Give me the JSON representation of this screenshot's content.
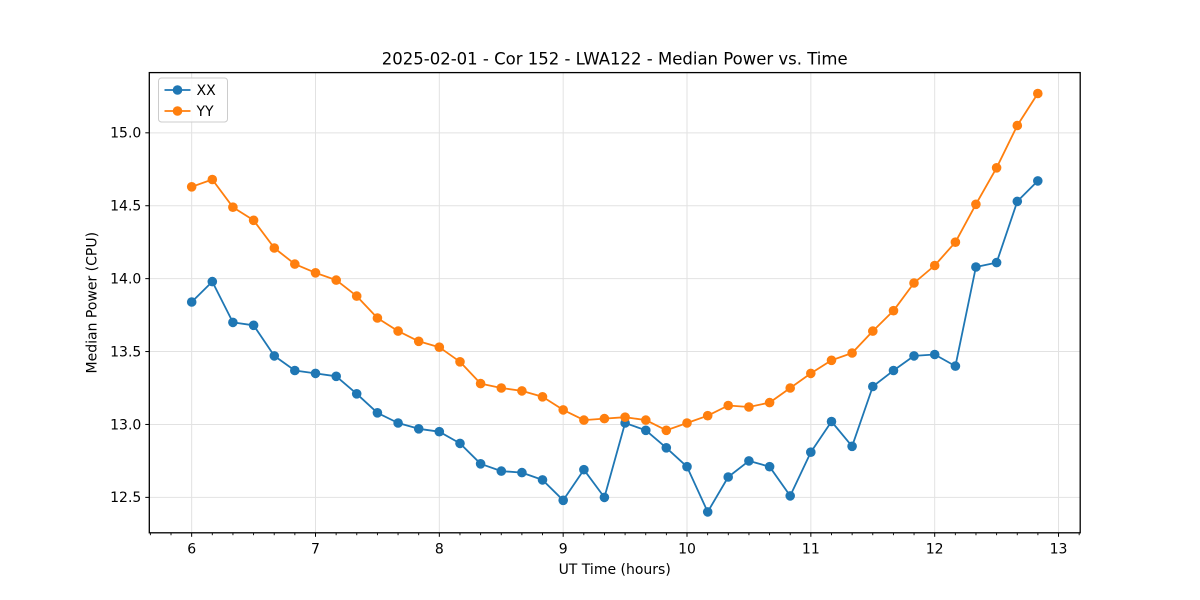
{
  "chart_data": {
    "type": "line",
    "title": "2025-02-01 - Cor 152 - LWA122 - Median Power vs. Time",
    "xlabel": "UT Time (hours)",
    "ylabel": "Median Power (CPU)",
    "xlim": [
      5.658,
      13.175
    ],
    "ylim": [
      12.257,
      15.413
    ],
    "x_ticks": [
      6,
      7,
      8,
      9,
      10,
      11,
      12,
      13
    ],
    "x_tick_labels": [
      "6",
      "7",
      "8",
      "9",
      "10",
      "11",
      "12",
      "13"
    ],
    "y_ticks": [
      12.5,
      13.0,
      13.5,
      14.0,
      14.5,
      15.0
    ],
    "y_tick_labels": [
      "12.5",
      "13.0",
      "13.5",
      "14.0",
      "14.5",
      "15.0"
    ],
    "x_minor_tick_step": 0.166667,
    "grid": true,
    "grid_color": "#e2e2e2",
    "legend_position": "upper left",
    "x": [
      6.0,
      6.167,
      6.333,
      6.5,
      6.667,
      6.833,
      7.0,
      7.167,
      7.333,
      7.5,
      7.667,
      7.833,
      8.0,
      8.167,
      8.333,
      8.5,
      8.667,
      8.833,
      9.0,
      9.167,
      9.333,
      9.5,
      9.667,
      9.833,
      10.0,
      10.167,
      10.333,
      10.5,
      10.667,
      10.833,
      11.0,
      11.167,
      11.333,
      11.5,
      11.667,
      11.833,
      12.0,
      12.167,
      12.333,
      12.5,
      12.667,
      12.833
    ],
    "series": [
      {
        "name": "XX",
        "color": "#1f77b4",
        "values": [
          13.84,
          13.98,
          13.7,
          13.68,
          13.47,
          13.37,
          13.35,
          13.33,
          13.21,
          13.08,
          13.01,
          12.97,
          12.95,
          12.87,
          12.73,
          12.68,
          12.67,
          12.62,
          12.48,
          12.69,
          12.5,
          13.01,
          12.96,
          12.84,
          12.71,
          12.4,
          12.64,
          12.75,
          12.71,
          12.51,
          12.81,
          13.02,
          12.85,
          13.26,
          13.37,
          13.47,
          13.48,
          13.4,
          14.08,
          14.11,
          14.53,
          14.67
        ]
      },
      {
        "name": "YY",
        "color": "#ff7f0e",
        "values": [
          14.63,
          14.68,
          14.49,
          14.4,
          14.21,
          14.1,
          14.04,
          13.99,
          13.88,
          13.73,
          13.64,
          13.57,
          13.53,
          13.43,
          13.28,
          13.25,
          13.23,
          13.19,
          13.1,
          13.03,
          13.04,
          13.05,
          13.03,
          12.96,
          13.01,
          13.06,
          13.13,
          13.12,
          13.15,
          13.25,
          13.35,
          13.44,
          13.49,
          13.64,
          13.78,
          13.97,
          14.09,
          14.25,
          14.51,
          14.76,
          15.05,
          15.27
        ]
      }
    ]
  }
}
